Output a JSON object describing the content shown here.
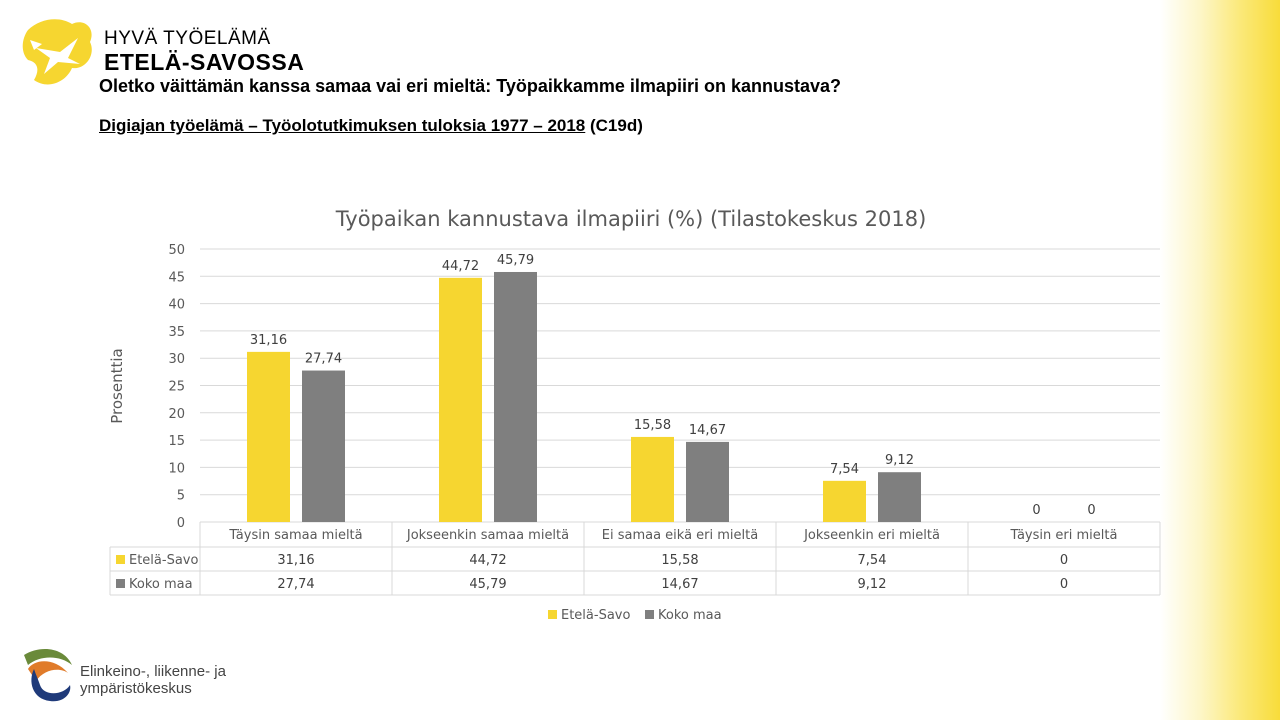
{
  "logo": {
    "line1": "HYVÄ TYÖELÄMÄ",
    "line2": "ETELÄ-SAVOSSA"
  },
  "heading": "Oletko väittämän kanssa samaa vai eri mieltä: Työpaikkamme ilmapiiri  on kannustava?",
  "subheading": {
    "underlined": "Digiajan työelämä – Työolotutkimuksen tuloksia 1977 – 2018",
    "suffix": " (C19d)"
  },
  "footer_logo": {
    "line1": "Elinkeino-, liikenne- ja",
    "line2": "ympäristökeskus"
  },
  "colors": {
    "etela_savo": "#f6d630",
    "koko_maa": "#7f7f7f",
    "grid": "#d9d9d9"
  },
  "chart_data": {
    "type": "bar",
    "title": "Työpaikan kannustava ilmapiiri (%) (Tilastokeskus 2018)",
    "ylabel": "Prosenttia",
    "xlabel": "",
    "ylim": [
      0,
      50
    ],
    "yticks": [
      0,
      5,
      10,
      15,
      20,
      25,
      30,
      35,
      40,
      45,
      50
    ],
    "categories": [
      "Täysin samaa mieltä",
      "Jokseenkin samaa mieltä",
      "Ei samaa eikä eri mieltä",
      "Jokseenkin eri mieltä",
      "Täysin eri mieltä"
    ],
    "series": [
      {
        "name": "Etelä-Savo",
        "values": [
          31.16,
          44.72,
          15.58,
          7.54,
          0
        ],
        "labels": [
          "31,16",
          "44,72",
          "15,58",
          "7,54",
          "0"
        ]
      },
      {
        "name": "Koko maa",
        "values": [
          27.74,
          45.79,
          14.67,
          9.12,
          0
        ],
        "labels": [
          "27,74",
          "45,79",
          "14,67",
          "9,12",
          "0"
        ]
      }
    ],
    "grid": true,
    "legend": "bottom",
    "data_table": true
  }
}
